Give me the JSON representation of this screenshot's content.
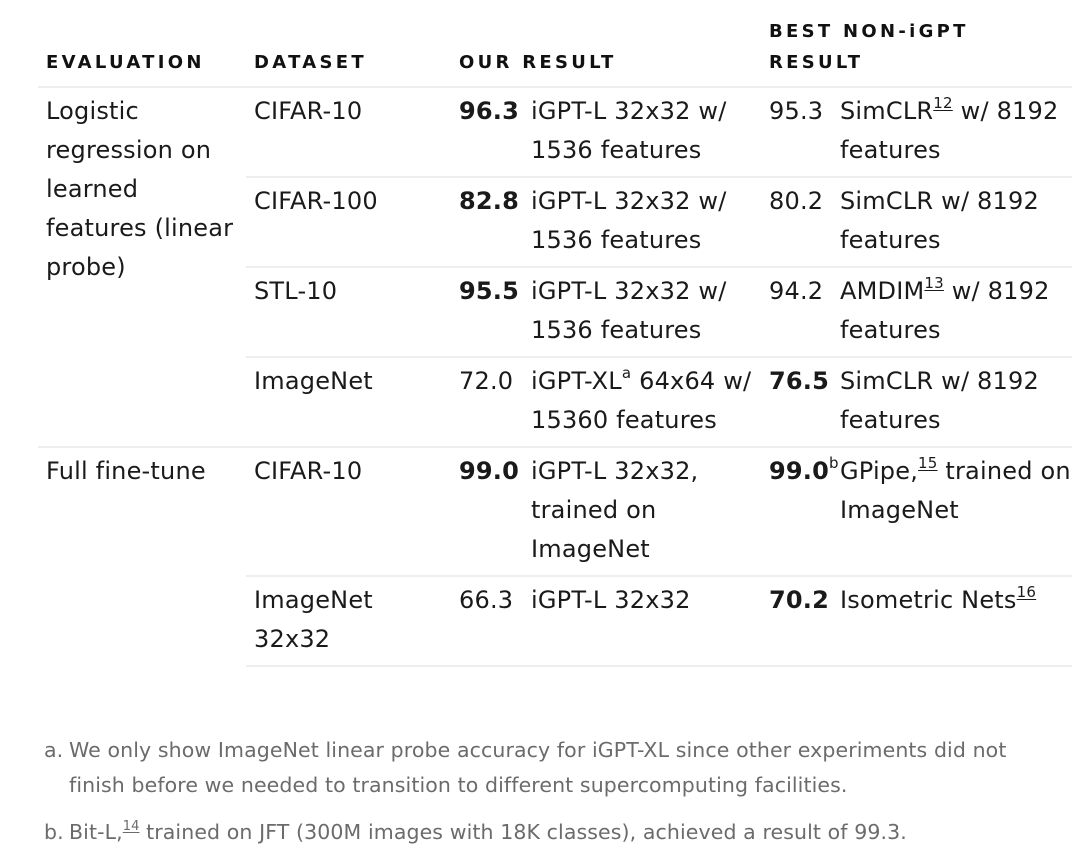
{
  "headers": {
    "evaluation": "EVALUATION",
    "dataset": "DATASET",
    "our_result": "OUR RESULT",
    "best_line1": "BEST NON-iGPT",
    "best_line2": "RESULT"
  },
  "groups": {
    "linear_probe": "Logistic regression on learned features (linear probe)",
    "fine_tune": "Full fine-tune"
  },
  "rows": [
    {
      "dataset": "CIFAR-10",
      "our_value": "96.3",
      "our_model": "iGPT-L 32x32 w/ 1536 features",
      "best_value": "95.3",
      "best_model_a": "SimCLR",
      "best_model_sup": "12",
      "best_model_b": " w/ 8192 features"
    },
    {
      "dataset": "CIFAR-100",
      "our_value": "82.8",
      "our_model": "iGPT-L 32x32 w/ 1536 features",
      "best_value": "80.2",
      "best_model": "SimCLR w/ 8192 features"
    },
    {
      "dataset": "STL-10",
      "our_value": "95.5",
      "our_model": "iGPT-L 32x32 w/ 1536 features",
      "best_value": "94.2",
      "best_model_a": "AMDIM",
      "best_model_sup": "13",
      "best_model_b": " w/ 8192 features"
    },
    {
      "dataset": "ImageNet",
      "our_value": "72.0",
      "our_model_a": "iGPT-XL",
      "our_model_sup": "a",
      "our_model_b": " 64x64 w/ 15360 features",
      "best_value": "76.5",
      "best_model": "SimCLR w/ 8192 features"
    },
    {
      "dataset": "CIFAR-10",
      "our_value": "99.0",
      "our_model": "iGPT-L 32x32, trained on ImageNet",
      "best_value": "99.0",
      "best_value_sup": "b",
      "best_model_a": "GPipe,",
      "best_model_sup": "15",
      "best_model_b": " trained on ImageNet"
    },
    {
      "dataset": "ImageNet 32x32",
      "our_value": "66.3",
      "our_model": "iGPT-L 32x32",
      "best_value": "70.2",
      "best_model_a": "Isometric Nets",
      "best_model_sup": "16"
    }
  ],
  "footnotes": [
    {
      "marker": "a.",
      "text": "We only show ImageNet linear probe accuracy for iGPT-XL since other experiments did not finish before we needed to transition to different supercomputing facilities."
    },
    {
      "marker": "b.",
      "text_a": "Bit-L,",
      "sup": "14",
      "text_b": " trained on JFT (300M images with 18K classes), achieved a result of 99.3."
    }
  ]
}
